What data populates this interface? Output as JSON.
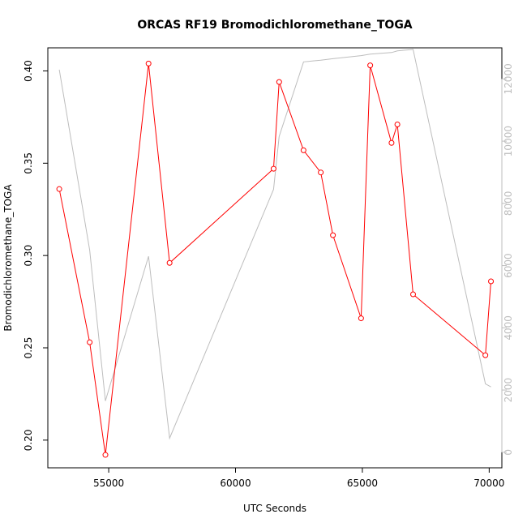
{
  "chart_data": {
    "type": "line",
    "title": "ORCAS RF19 Bromodichloromethane_TOGA",
    "xlabel": "UTC Seconds",
    "ylabel": "Bromodichloromethane_TOGA",
    "xlim": [
      52600,
      70500
    ],
    "ylim": [
      0.185,
      0.4125
    ],
    "y2lim": [
      -500,
      13000
    ],
    "x_ticks": [
      55000,
      60000,
      65000,
      70000
    ],
    "x_tick_labels": [
      "55000",
      "60000",
      "65000",
      "70000"
    ],
    "y_ticks": [
      0.2,
      0.25,
      0.3,
      0.35,
      0.4
    ],
    "y_tick_labels": [
      "0.20",
      "0.25",
      "0.30",
      "0.35",
      "0.40"
    ],
    "y2_ticks": [
      0,
      2000,
      4000,
      6000,
      8000,
      10000,
      12000
    ],
    "y2_tick_labels": [
      "0",
      "2000",
      "4000",
      "6000",
      "8000",
      "10000",
      "12000"
    ],
    "grid": false,
    "series": [
      {
        "color": "#ff0000",
        "marker": "open-circle",
        "axis": "left",
        "x": [
          53050,
          54250,
          54870,
          56570,
          57400,
          61500,
          61720,
          62680,
          63360,
          63840,
          64950,
          65310,
          66150,
          66380,
          67000,
          69850,
          70070
        ],
        "y": [
          0.336,
          0.253,
          0.192,
          0.404,
          0.296,
          0.347,
          0.394,
          0.357,
          0.345,
          0.311,
          0.266,
          0.403,
          0.361,
          0.371,
          0.279,
          0.246,
          0.286
        ]
      },
      {
        "color": "#bdbdbd",
        "marker": "none",
        "axis": "right",
        "x": [
          53050,
          54250,
          54870,
          56570,
          57400,
          61500,
          61720,
          62680,
          63360,
          63840,
          64950,
          65310,
          66150,
          66380,
          67000,
          69850,
          70070
        ],
        "y": [
          12300,
          6500,
          1650,
          6300,
          450,
          8450,
          10150,
          12550,
          12600,
          12650,
          12750,
          12800,
          12850,
          12900,
          12950,
          2200,
          2100
        ]
      }
    ]
  }
}
